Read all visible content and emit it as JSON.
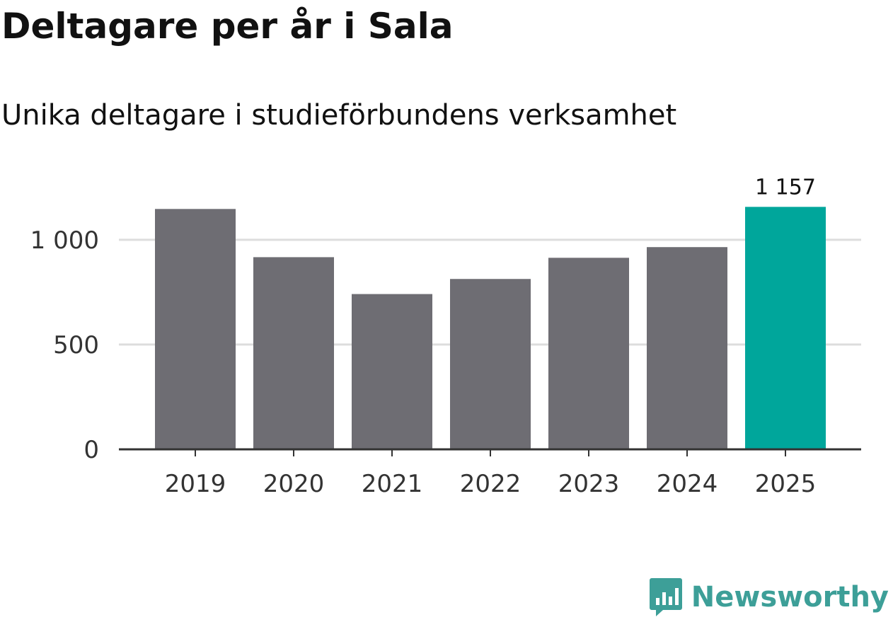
{
  "header": {
    "title": "Deltagare per år i Sala",
    "subtitle": "Unika deltagare i studieförbundens verksamhet"
  },
  "chart_data": {
    "type": "bar",
    "title": "Deltagare per år i Sala",
    "subtitle": "Unika deltagare i studieförbundens verksamhet",
    "xlabel": "",
    "ylabel": "",
    "categories": [
      "2019",
      "2020",
      "2021",
      "2022",
      "2023",
      "2024",
      "2025"
    ],
    "values": [
      1147,
      917,
      741,
      813,
      914,
      965,
      1157
    ],
    "highlight_index": 6,
    "highlight_label": "1 157",
    "ylim": [
      0,
      1250
    ],
    "yticks": [
      {
        "value": 0,
        "label": "0"
      },
      {
        "value": 500,
        "label": "500"
      },
      {
        "value": 1000,
        "label": "1 000"
      }
    ],
    "grid": true,
    "colors": {
      "bar": "#6e6d73",
      "highlight": "#00a69b",
      "grid": "#dddddd",
      "axis": "#333333"
    }
  },
  "logo": {
    "name": "newsworthy-logo-icon",
    "text": "Newsworthy",
    "color": "#3d9f98"
  }
}
